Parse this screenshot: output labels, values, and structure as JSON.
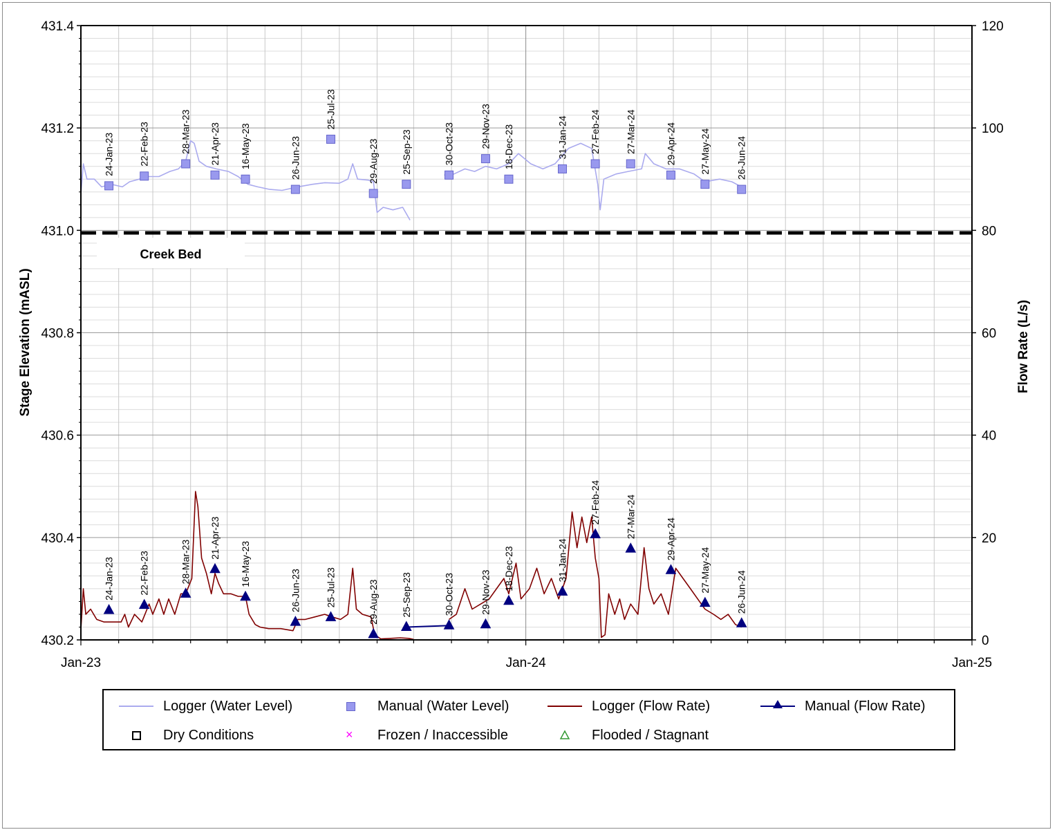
{
  "chart_data": {
    "type": "line",
    "title": "",
    "ylabel_left": "Stage Elevation (mASL)",
    "ylabel_right": "Flow Rate (L/s)",
    "ylim_left": [
      430.2,
      431.4
    ],
    "ylim_right": [
      0,
      120
    ],
    "left_ticks": [
      "430.2",
      "430.4",
      "430.6",
      "430.8",
      "431.0",
      "431.2",
      "431.4"
    ],
    "right_ticks": [
      "0",
      "20",
      "40",
      "60",
      "80",
      "100",
      "120"
    ],
    "x_ticks": [
      "Jan-23",
      "Jan-24",
      "Jan-25"
    ],
    "x_range": [
      "2023-01-01",
      "2025-01-01"
    ],
    "grid": true,
    "legend_position": "bottom",
    "creek_bed_label": "Creek Bed",
    "creek_bed_elevation": 430.995,
    "series": [
      {
        "name": "Manual (Water Level)",
        "axis": "left",
        "points": [
          {
            "date": "2023-01-24",
            "label": "24-Jan-23",
            "value": 431.087
          },
          {
            "date": "2023-02-22",
            "label": "22-Feb-23",
            "value": 431.106
          },
          {
            "date": "2023-03-28",
            "label": "28-Mar-23",
            "value": 431.13
          },
          {
            "date": "2023-04-21",
            "label": "21-Apr-23",
            "value": 431.108
          },
          {
            "date": "2023-05-16",
            "label": "16-May-23",
            "value": 431.1
          },
          {
            "date": "2023-06-26",
            "label": "26-Jun-23",
            "value": 431.08
          },
          {
            "date": "2023-07-25",
            "label": "25-Jul-23",
            "value": 431.178
          },
          {
            "date": "2023-08-29",
            "label": "29-Aug-23",
            "value": 431.072
          },
          {
            "date": "2023-09-25",
            "label": "25-Sep-23",
            "value": 431.09
          },
          {
            "date": "2023-10-30",
            "label": "30-Oct-23",
            "value": 431.108
          },
          {
            "date": "2023-11-29",
            "label": "29-Nov-23",
            "value": 431.14
          },
          {
            "date": "2023-12-18",
            "label": "18-Dec-23",
            "value": 431.1
          },
          {
            "date": "2024-01-31",
            "label": "31-Jan-24",
            "value": 431.12
          },
          {
            "date": "2024-02-27",
            "label": "27-Feb-24",
            "value": 431.13
          },
          {
            "date": "2024-03-27",
            "label": "27-Mar-24",
            "value": 431.13
          },
          {
            "date": "2024-04-29",
            "label": "29-Apr-24",
            "value": 431.108
          },
          {
            "date": "2024-05-27",
            "label": "27-May-24",
            "value": 431.09
          },
          {
            "date": "2024-06-26",
            "label": "26-Jun-24",
            "value": 431.08
          }
        ]
      },
      {
        "name": "Manual (Flow Rate)",
        "axis": "right",
        "points": [
          {
            "date": "2023-01-24",
            "label": "24-Jan-23",
            "value": 5.8
          },
          {
            "date": "2023-02-22",
            "label": "22-Feb-23",
            "value": 6.8
          },
          {
            "date": "2023-03-28",
            "label": "28-Mar-23",
            "value": 9.0
          },
          {
            "date": "2023-04-21",
            "label": "21-Apr-23",
            "value": 13.8
          },
          {
            "date": "2023-05-16",
            "label": "16-May-23",
            "value": 8.4
          },
          {
            "date": "2023-06-26",
            "label": "26-Jun-23",
            "value": 3.5
          },
          {
            "date": "2023-07-25",
            "label": "25-Jul-23",
            "value": 4.4
          },
          {
            "date": "2023-08-29",
            "label": "29-Aug-23",
            "value": 1.1
          },
          {
            "date": "2023-09-25",
            "label": "25-Sep-23",
            "value": 2.5
          },
          {
            "date": "2023-10-30",
            "label": "30-Oct-23",
            "value": 2.8
          },
          {
            "date": "2023-11-29",
            "label": "29-Nov-23",
            "value": 3.0
          },
          {
            "date": "2023-12-18",
            "label": "18-Dec-23",
            "value": 7.6
          },
          {
            "date": "2024-01-31",
            "label": "31-Jan-24",
            "value": 9.4
          },
          {
            "date": "2024-02-27",
            "label": "27-Feb-24",
            "value": 20.6
          },
          {
            "date": "2024-03-27",
            "label": "27-Mar-24",
            "value": 17.8
          },
          {
            "date": "2024-04-29",
            "label": "29-Apr-24",
            "value": 13.6
          },
          {
            "date": "2024-05-27",
            "label": "27-May-24",
            "value": 7.2
          },
          {
            "date": "2024-06-26",
            "label": "26-Jun-24",
            "value": 3.2
          }
        ]
      },
      {
        "name": "Logger (Water Level)",
        "axis": "left",
        "approximate": true,
        "points": [
          [
            "2023-01-01",
            431.07
          ],
          [
            "2023-01-03",
            431.13
          ],
          [
            "2023-01-06",
            431.1
          ],
          [
            "2023-01-12",
            431.1
          ],
          [
            "2023-01-18",
            431.085
          ],
          [
            "2023-01-26",
            431.09
          ],
          [
            "2023-02-04",
            431.085
          ],
          [
            "2023-02-10",
            431.095
          ],
          [
            "2023-02-18",
            431.1
          ],
          [
            "2023-02-26",
            431.105
          ],
          [
            "2023-03-06",
            431.105
          ],
          [
            "2023-03-15",
            431.115
          ],
          [
            "2023-03-22",
            431.12
          ],
          [
            "2023-03-28",
            431.135
          ],
          [
            "2023-04-01",
            431.175
          ],
          [
            "2023-04-04",
            431.17
          ],
          [
            "2023-04-08",
            431.135
          ],
          [
            "2023-04-14",
            431.125
          ],
          [
            "2023-04-22",
            431.12
          ],
          [
            "2023-05-02",
            431.115
          ],
          [
            "2023-05-10",
            431.105
          ],
          [
            "2023-05-18",
            431.09
          ],
          [
            "2023-05-26",
            431.085
          ],
          [
            "2023-06-05",
            431.08
          ],
          [
            "2023-06-15",
            431.078
          ],
          [
            "2023-06-28",
            431.085
          ],
          [
            "2023-07-10",
            431.09
          ],
          [
            "2023-07-20",
            431.093
          ],
          [
            "2023-08-01",
            431.092
          ],
          [
            "2023-08-08",
            431.1
          ],
          [
            "2023-08-12",
            431.13
          ],
          [
            "2023-08-16",
            431.1
          ],
          [
            "2023-08-25",
            431.098
          ],
          [
            "2023-08-29",
            431.095
          ],
          [
            "2023-09-01",
            431.035
          ],
          [
            "2023-09-06",
            431.045
          ],
          [
            "2023-09-14",
            431.04
          ],
          [
            "2023-09-22",
            431.045
          ],
          [
            "2023-09-28",
            431.02
          ]
        ],
        "segment_2": [
          [
            "2023-10-26",
            431.108
          ],
          [
            "2023-11-03",
            431.11
          ],
          [
            "2023-11-12",
            431.12
          ],
          [
            "2023-11-20",
            431.115
          ],
          [
            "2023-11-29",
            431.125
          ],
          [
            "2023-12-08",
            431.12
          ],
          [
            "2023-12-18",
            431.13
          ],
          [
            "2023-12-26",
            431.15
          ],
          [
            "2024-01-05",
            431.13
          ],
          [
            "2024-01-15",
            431.12
          ],
          [
            "2024-01-25",
            431.13
          ],
          [
            "2024-02-05",
            431.16
          ],
          [
            "2024-02-15",
            431.17
          ],
          [
            "2024-02-24",
            431.16
          ],
          [
            "2024-02-29",
            431.09
          ],
          [
            "2024-03-02",
            431.04
          ],
          [
            "2024-03-05",
            431.1
          ],
          [
            "2024-03-15",
            431.11
          ],
          [
            "2024-03-25",
            431.115
          ],
          [
            "2024-04-05",
            431.12
          ],
          [
            "2024-04-08",
            431.15
          ],
          [
            "2024-04-15",
            431.13
          ],
          [
            "2024-04-25",
            431.12
          ],
          [
            "2024-05-06",
            431.12
          ],
          [
            "2024-05-18",
            431.11
          ],
          [
            "2024-05-27",
            431.095
          ],
          [
            "2024-06-08",
            431.1
          ],
          [
            "2024-06-18",
            431.095
          ],
          [
            "2024-06-26",
            431.085
          ]
        ]
      },
      {
        "name": "Logger (Flow Rate)",
        "axis": "right",
        "approximate": true,
        "points": [
          [
            "2023-01-01",
            2
          ],
          [
            "2023-01-03",
            10
          ],
          [
            "2023-01-05",
            5
          ],
          [
            "2023-01-09",
            6
          ],
          [
            "2023-01-14",
            4
          ],
          [
            "2023-01-20",
            3.5
          ],
          [
            "2023-01-26",
            3.5
          ],
          [
            "2023-02-03",
            3.5
          ],
          [
            "2023-02-06",
            5
          ],
          [
            "2023-02-09",
            2.5
          ],
          [
            "2023-02-14",
            5
          ],
          [
            "2023-02-20",
            3.5
          ],
          [
            "2023-02-26",
            7
          ],
          [
            "2023-03-01",
            5
          ],
          [
            "2023-03-06",
            8
          ],
          [
            "2023-03-10",
            5
          ],
          [
            "2023-03-14",
            8
          ],
          [
            "2023-03-19",
            5
          ],
          [
            "2023-03-24",
            9
          ],
          [
            "2023-03-28",
            9
          ],
          [
            "2023-04-02",
            12
          ],
          [
            "2023-04-05",
            29
          ],
          [
            "2023-04-07",
            26
          ],
          [
            "2023-04-10",
            16
          ],
          [
            "2023-04-14",
            13
          ],
          [
            "2023-04-18",
            9
          ],
          [
            "2023-04-21",
            13
          ],
          [
            "2023-04-24",
            11
          ],
          [
            "2023-04-28",
            9
          ],
          [
            "2023-05-04",
            9
          ],
          [
            "2023-05-10",
            8.5
          ],
          [
            "2023-05-16",
            8.5
          ],
          [
            "2023-05-19",
            5
          ],
          [
            "2023-05-24",
            3
          ],
          [
            "2023-05-28",
            2.5
          ],
          [
            "2023-06-04",
            2.2
          ],
          [
            "2023-06-14",
            2.2
          ],
          [
            "2023-06-24",
            1.8
          ],
          [
            "2023-06-28",
            4
          ],
          [
            "2023-07-04",
            4
          ],
          [
            "2023-07-12",
            4.5
          ],
          [
            "2023-07-20",
            5
          ],
          [
            "2023-07-26",
            4.5
          ],
          [
            "2023-08-02",
            4
          ],
          [
            "2023-08-08",
            5
          ],
          [
            "2023-08-12",
            14
          ],
          [
            "2023-08-15",
            6
          ],
          [
            "2023-08-20",
            5
          ],
          [
            "2023-08-27",
            4.5
          ],
          [
            "2023-08-30",
            1
          ],
          [
            "2023-09-04",
            0.2
          ],
          [
            "2023-09-12",
            0.3
          ],
          [
            "2023-09-20",
            0.4
          ],
          [
            "2023-09-27",
            0.3
          ],
          [
            "2023-10-01",
            0.1
          ]
        ],
        "segment_2": [
          [
            "2023-10-30",
            4
          ],
          [
            "2023-11-05",
            5
          ],
          [
            "2023-11-12",
            10
          ],
          [
            "2023-11-18",
            6
          ],
          [
            "2023-11-25",
            7
          ],
          [
            "2023-12-02",
            8
          ],
          [
            "2023-12-08",
            10
          ],
          [
            "2023-12-14",
            12
          ],
          [
            "2023-12-18",
            9
          ],
          [
            "2023-12-24",
            15
          ],
          [
            "2023-12-28",
            8
          ],
          [
            "2024-01-04",
            10
          ],
          [
            "2024-01-10",
            14
          ],
          [
            "2024-01-16",
            9
          ],
          [
            "2024-01-22",
            12
          ],
          [
            "2024-01-28",
            8
          ],
          [
            "2024-02-03",
            12
          ],
          [
            "2024-02-08",
            25
          ],
          [
            "2024-02-12",
            18
          ],
          [
            "2024-02-16",
            24
          ],
          [
            "2024-02-20",
            19
          ],
          [
            "2024-02-24",
            24
          ],
          [
            "2024-02-27",
            16
          ],
          [
            "2024-03-01",
            12
          ],
          [
            "2024-03-03",
            0.5
          ],
          [
            "2024-03-06",
            1
          ],
          [
            "2024-03-09",
            9
          ],
          [
            "2024-03-14",
            5
          ],
          [
            "2024-03-18",
            8
          ],
          [
            "2024-03-22",
            4
          ],
          [
            "2024-03-27",
            7
          ],
          [
            "2024-04-02",
            5
          ],
          [
            "2024-04-07",
            18
          ],
          [
            "2024-04-11",
            10
          ],
          [
            "2024-04-15",
            7
          ],
          [
            "2024-04-21",
            9
          ],
          [
            "2024-04-27",
            5
          ],
          [
            "2024-05-03",
            14
          ],
          [
            "2024-05-09",
            12
          ],
          [
            "2024-05-15",
            10
          ],
          [
            "2024-05-21",
            8
          ],
          [
            "2024-05-27",
            6
          ],
          [
            "2024-06-03",
            5
          ],
          [
            "2024-06-09",
            4
          ],
          [
            "2024-06-15",
            5
          ],
          [
            "2024-06-21",
            3
          ],
          [
            "2024-06-26",
            2.5
          ]
        ]
      }
    ],
    "manual_flow_connected_segment": [
      "2023-09-25",
      "2023-10-30"
    ]
  },
  "legend": {
    "items": [
      {
        "key": "logger_wl",
        "label": "Logger (Water Level)",
        "color": "#aaaaee",
        "symbol": "line"
      },
      {
        "key": "manual_wl",
        "label": "Manual (Water Level)",
        "color": "#9999ee",
        "symbol": "square"
      },
      {
        "key": "logger_fr",
        "label": "Logger (Flow  Rate)",
        "color": "#800000",
        "symbol": "line"
      },
      {
        "key": "manual_fr",
        "label": "Manual (Flow  Rate)",
        "color": "#000080",
        "symbol": "line-triangle"
      },
      {
        "key": "dry",
        "label": "Dry Conditions",
        "color": "#000000",
        "symbol": "open-square"
      },
      {
        "key": "frozen",
        "label": "Frozen / Inaccessible",
        "color": "#ff00ff",
        "symbol": "x"
      },
      {
        "key": "flooded",
        "label": "Flooded / Stagnant",
        "color": "#339933",
        "symbol": "open-triangle"
      }
    ]
  },
  "colors": {
    "logger_wl": "#aaaaee",
    "manual_wl_fill": "#9999ee",
    "manual_wl_stroke": "#6666cc",
    "logger_fr": "#800000",
    "manual_fr": "#000080",
    "creek_bed": "#000000",
    "grid": "#bfbfbf"
  }
}
